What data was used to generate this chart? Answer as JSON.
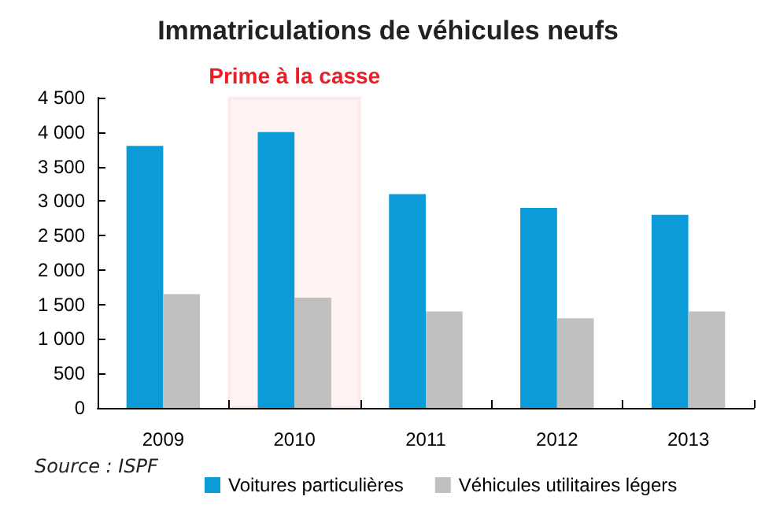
{
  "chart_data": {
    "type": "bar",
    "title": "Immatriculations de véhicules neufs",
    "categories": [
      "2009",
      "2010",
      "2011",
      "2012",
      "2013"
    ],
    "series": [
      {
        "name": "Voitures particulières",
        "color": "#0a9bd8",
        "values": [
          3800,
          4000,
          3100,
          2900,
          2800
        ]
      },
      {
        "name": "Véhicules utilitaires légers",
        "color": "#c0c0c0",
        "values": [
          1650,
          1600,
          1400,
          1300,
          1400
        ]
      }
    ],
    "ylim": [
      0,
      4500
    ],
    "yticks": [
      0,
      500,
      {
        "value": 1000,
        "label": "1 000"
      },
      {
        "value": 1500,
        "label": "1 500"
      },
      {
        "value": 2000,
        "label": "2 000"
      },
      {
        "value": 2500,
        "label": "2 500"
      },
      {
        "value": 3000,
        "label": "3 000"
      },
      {
        "value": 3500,
        "label": "3 500"
      },
      {
        "value": 4000,
        "label": "4 000"
      },
      {
        "value": 4500,
        "label": "4 500"
      }
    ],
    "bands": [
      {
        "axis": "x",
        "from": "2010",
        "to": "2010",
        "label": "Prime à la casse",
        "color": "#ee1c25"
      }
    ],
    "annotations": [
      "Source : ISPF"
    ],
    "grid": false,
    "legend": "bottom"
  }
}
